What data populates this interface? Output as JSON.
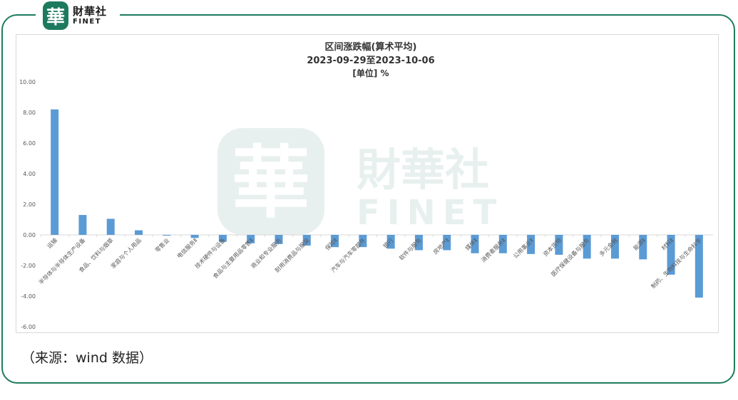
{
  "brand": {
    "seal_char": "華",
    "name_cn": "財華社",
    "name_en": "FINET"
  },
  "colors": {
    "bar": "#5b9bd5",
    "frame": "#1f7a5f",
    "watermark": "#1e7a5e"
  },
  "source_note": "（来源：wind 数据）",
  "chart_data": {
    "type": "bar",
    "title": "区间涨跌幅(算术平均)",
    "subtitle": "2023-09-29至2023-10-06",
    "unit_label": "[单位] %",
    "ylim": [
      -6,
      10
    ],
    "yticks": [
      "10.00",
      "8.00",
      "6.00",
      "4.00",
      "2.00",
      "0.00",
      "-2.00",
      "-4.00",
      "-6.00"
    ],
    "grid": false,
    "categories": [
      "运输",
      "半导体与半导体生产设备",
      "食品、饮料与烟草",
      "家庭与个人用品",
      "零售业",
      "电信服务Ⅱ",
      "技术硬件与设备",
      "食品与主要用品零售Ⅱ",
      "商业和专业服务",
      "耐用消费品与服装",
      "保险Ⅱ",
      "汽车与汽车零部件",
      "银行",
      "软件与服务",
      "房地产Ⅱ",
      "媒体Ⅱ",
      "消费者服务Ⅱ",
      "公用事业Ⅱ",
      "资本货物",
      "医疗保健设备与服务",
      "多元金融",
      "能源Ⅱ",
      "材料Ⅱ",
      "制药、生物科技与生命科学"
    ],
    "values": [
      8.2,
      1.3,
      1.05,
      0.3,
      -0.05,
      -0.2,
      -0.45,
      -0.55,
      -0.6,
      -0.7,
      -0.8,
      -0.8,
      -0.9,
      -1.0,
      -1.0,
      -1.2,
      -1.2,
      -1.25,
      -1.3,
      -1.55,
      -1.55,
      -1.6,
      -2.6,
      -4.1
    ]
  }
}
